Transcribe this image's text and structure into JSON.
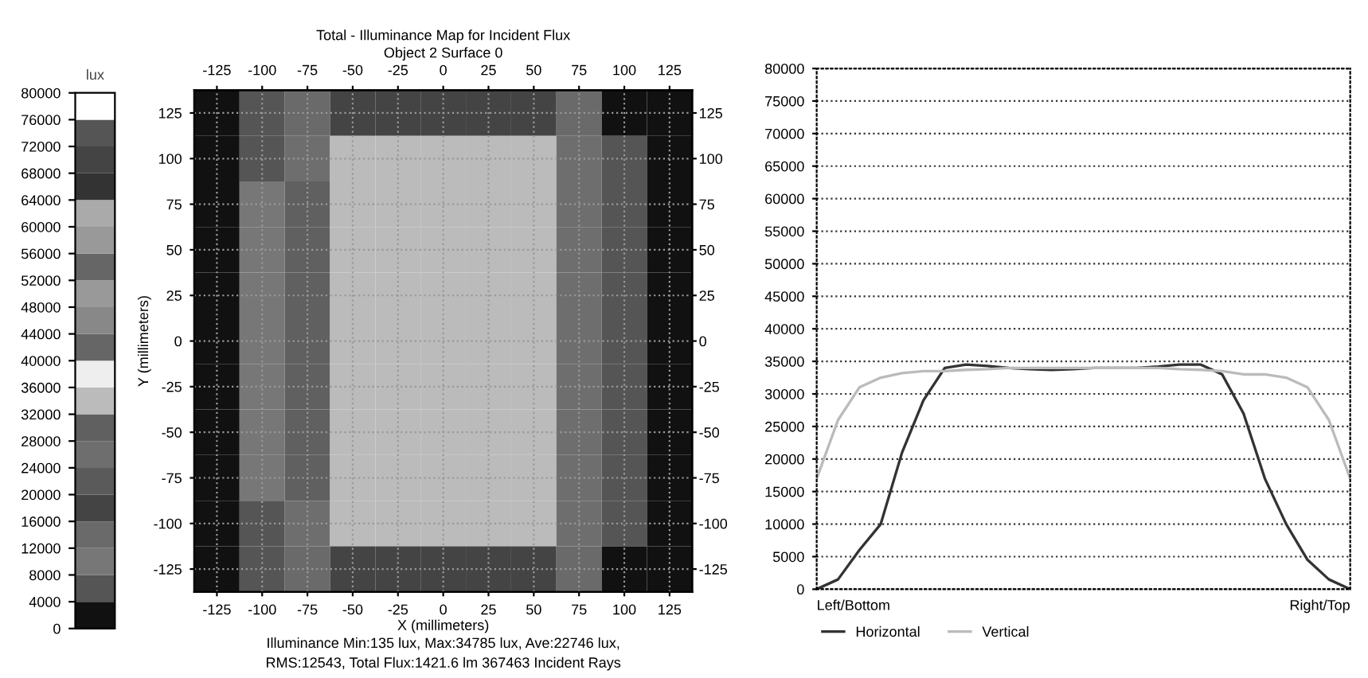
{
  "chart_data": [
    {
      "type": "heatmap",
      "title": "Total - Illuminance Map for Incident Flux",
      "subtitle": "Object 2 Surface 0",
      "xlabel": "X (millimeters)",
      "ylabel": "Y (millimeters)",
      "clabel": "lux",
      "categories": [
        "-125",
        "-100",
        "-75",
        "-50",
        "-25",
        "0",
        "25",
        "50",
        "75",
        "100",
        "125"
      ],
      "y_categories": [
        "125",
        "100",
        "75",
        "50",
        "25",
        "0",
        "-25",
        "-50",
        "-75",
        "-100",
        "-125"
      ],
      "y2_categories": [
        "125",
        "100",
        "75",
        "50",
        "25",
        "0",
        "-25",
        "-50",
        "-75",
        "-100",
        "-125"
      ],
      "cells": [
        [
          300,
          4000,
          14000,
          17000,
          17000,
          17000,
          17000,
          17000,
          13000,
          3500,
          200
        ],
        [
          500,
          7500,
          27000,
          32500,
          32500,
          32500,
          32500,
          32500,
          25000,
          6500,
          300
        ],
        [
          500,
          8000,
          29000,
          34500,
          34000,
          34000,
          34000,
          34500,
          27000,
          7000,
          300
        ],
        [
          500,
          8000,
          29000,
          34500,
          34000,
          34000,
          34000,
          34500,
          27000,
          7000,
          300
        ],
        [
          500,
          8000,
          29000,
          34500,
          34000,
          34000,
          34000,
          34500,
          27000,
          7000,
          300
        ],
        [
          500,
          8000,
          29000,
          34500,
          34000,
          34000,
          34000,
          34500,
          27000,
          7000,
          300
        ],
        [
          500,
          8000,
          29000,
          34500,
          34000,
          34000,
          34000,
          34500,
          27000,
          7000,
          300
        ],
        [
          500,
          8000,
          29000,
          34500,
          34000,
          34000,
          34000,
          34500,
          27000,
          7000,
          300
        ],
        [
          500,
          8000,
          29000,
          34500,
          34000,
          34000,
          34000,
          34500,
          27000,
          7000,
          300
        ],
        [
          500,
          7500,
          27000,
          32500,
          32500,
          32500,
          32500,
          32500,
          25000,
          6500,
          300
        ],
        [
          300,
          4000,
          14000,
          17000,
          17000,
          17000,
          17000,
          17000,
          13000,
          3500,
          200
        ]
      ],
      "clim": [
        0,
        80000
      ],
      "cticks": [
        0,
        4000,
        8000,
        12000,
        16000,
        20000,
        24000,
        28000,
        32000,
        36000,
        40000,
        44000,
        48000,
        52000,
        56000,
        60000,
        64000,
        68000,
        72000,
        76000,
        80000
      ],
      "colors": [
        "#111111",
        "#555555",
        "#777777",
        "#6a6a6a",
        "#444444",
        "#5a5a5a",
        "#6e6e6e",
        "#606060",
        "#bbbbbb",
        "#eeeeee",
        "#666666",
        "#888888",
        "#999999",
        "#666666",
        "#999999",
        "#aaaaaa",
        "#333333",
        "#444444",
        "#555555",
        "#ffffff"
      ],
      "grid": true,
      "annotations": [
        "Illuminance Min:135 lux, Max:34785 lux, Ave:22746 lux,",
        "RMS:12543, Total Flux:1421.6 lm 367463 Incident Rays"
      ]
    },
    {
      "type": "line",
      "ylim": [
        0,
        80000
      ],
      "categories": [
        null,
        null,
        null,
        null,
        null,
        null,
        null,
        null,
        null,
        null,
        null,
        null,
        null,
        null,
        null,
        null,
        null,
        null,
        null,
        null,
        null,
        null,
        null,
        null,
        null,
        null
      ],
      "annotations": [
        "Left/Bottom",
        "Right/Top"
      ],
      "yticks": [
        0,
        5000,
        10000,
        15000,
        20000,
        25000,
        30000,
        35000,
        40000,
        45000,
        50000,
        55000,
        60000,
        65000,
        70000,
        75000,
        80000
      ],
      "grid": "y",
      "legend": "bottom",
      "line_style": "solid",
      "series": [
        {
          "name": "Horizontal",
          "color": "#333333",
          "values": [
            0,
            1500,
            6000,
            10000,
            21000,
            29000,
            34000,
            34500,
            34300,
            34000,
            33800,
            33700,
            33800,
            34000,
            34000,
            34000,
            34200,
            34500,
            34500,
            33000,
            27000,
            17000,
            10000,
            4500,
            1500,
            0
          ]
        },
        {
          "name": "Vertical",
          "color": "#bbbbbb",
          "values": [
            17000,
            26000,
            31000,
            32500,
            33200,
            33500,
            33500,
            33700,
            33800,
            34000,
            34000,
            34000,
            34000,
            34000,
            34000,
            34000,
            34000,
            33800,
            33700,
            33500,
            33000,
            33000,
            32500,
            31000,
            26000,
            17000
          ]
        }
      ]
    }
  ]
}
